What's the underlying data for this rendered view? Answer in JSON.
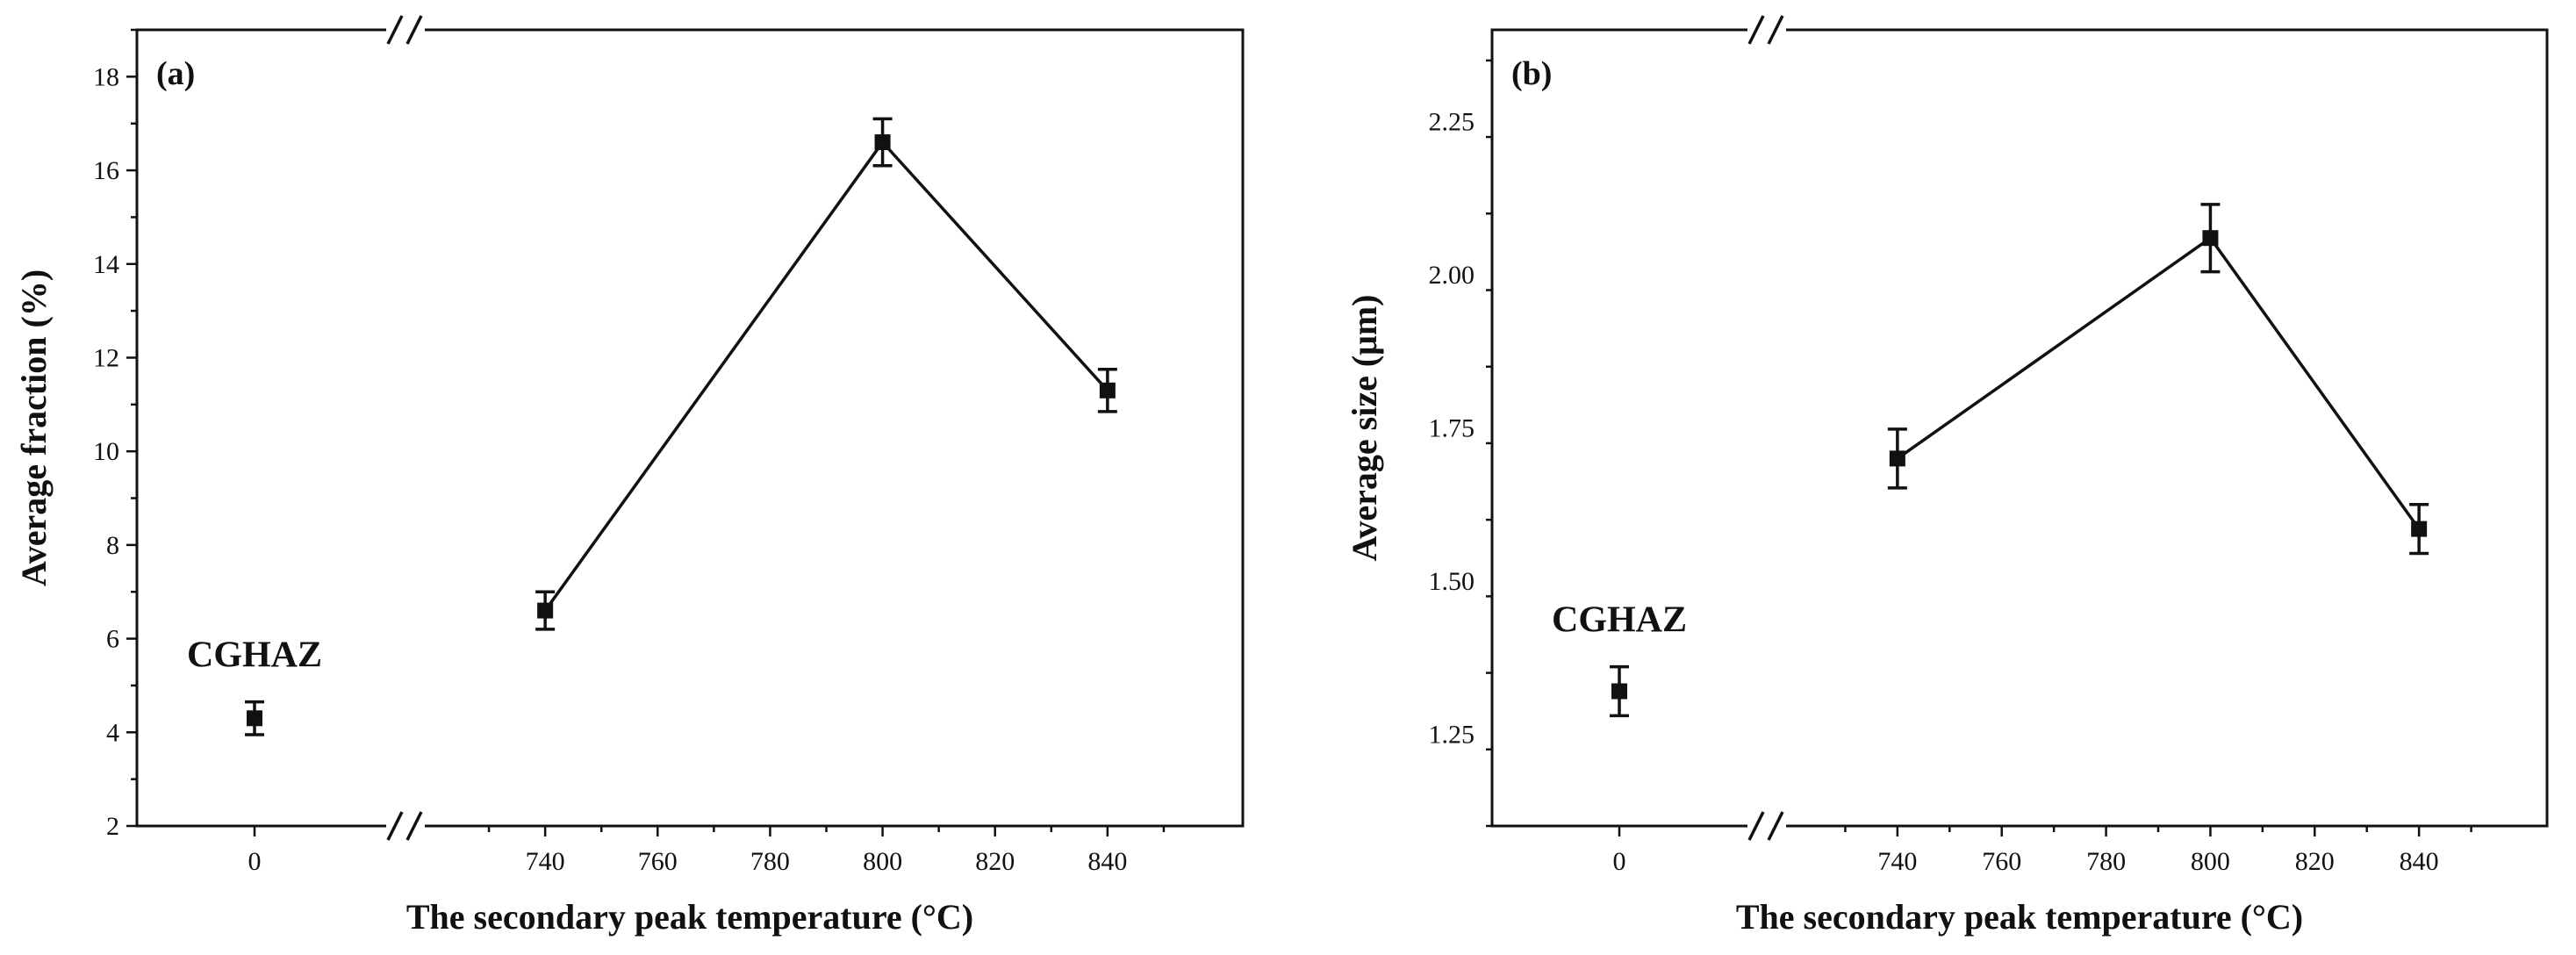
{
  "chart_data": [
    {
      "type": "line",
      "panel_label": "(a)",
      "title": "",
      "xlabel": "The secondary peak temperature (°C)",
      "ylabel": "Average fraction (%)",
      "ylim": [
        2,
        19
      ],
      "yticks": [
        2,
        4,
        6,
        8,
        10,
        12,
        14,
        16,
        18
      ],
      "x_break": true,
      "x_left_segment": {
        "ticks": [
          0
        ]
      },
      "x_right_segment": {
        "xlim": [
          720,
          860
        ],
        "ticks": [
          740,
          760,
          780,
          800,
          820,
          840
        ]
      },
      "isolated_point": {
        "x": 0,
        "y": 4.3,
        "err": 0.35,
        "label": "CGHAZ"
      },
      "series": [
        {
          "x": [
            740,
            800,
            840
          ],
          "y": [
            6.6,
            16.6,
            11.3
          ],
          "err": [
            0.4,
            0.5,
            0.45
          ]
        }
      ],
      "grid": false
    },
    {
      "type": "line",
      "panel_label": "(b)",
      "title": "",
      "xlabel": "The secondary peak temperature (°C)",
      "ylabel": "Average size (μm)",
      "ylim": [
        1.1,
        2.4
      ],
      "yticks": [
        1.25,
        1.5,
        1.75,
        2.0,
        2.25
      ],
      "ytick_labels": [
        "1.25",
        "1.50",
        "1.75",
        "2.00",
        "2.25"
      ],
      "x_break": true,
      "x_left_segment": {
        "ticks": [
          0
        ]
      },
      "x_right_segment": {
        "xlim": [
          720,
          860
        ],
        "ticks": [
          740,
          760,
          780,
          800,
          820,
          840
        ]
      },
      "isolated_point": {
        "x": 0,
        "y": 1.32,
        "err": 0.04,
        "label": "CGHAZ"
      },
      "series": [
        {
          "x": [
            740,
            800,
            840
          ],
          "y": [
            1.7,
            2.06,
            1.585
          ],
          "err": [
            0.048,
            0.055,
            0.04
          ]
        }
      ],
      "grid": false
    }
  ]
}
